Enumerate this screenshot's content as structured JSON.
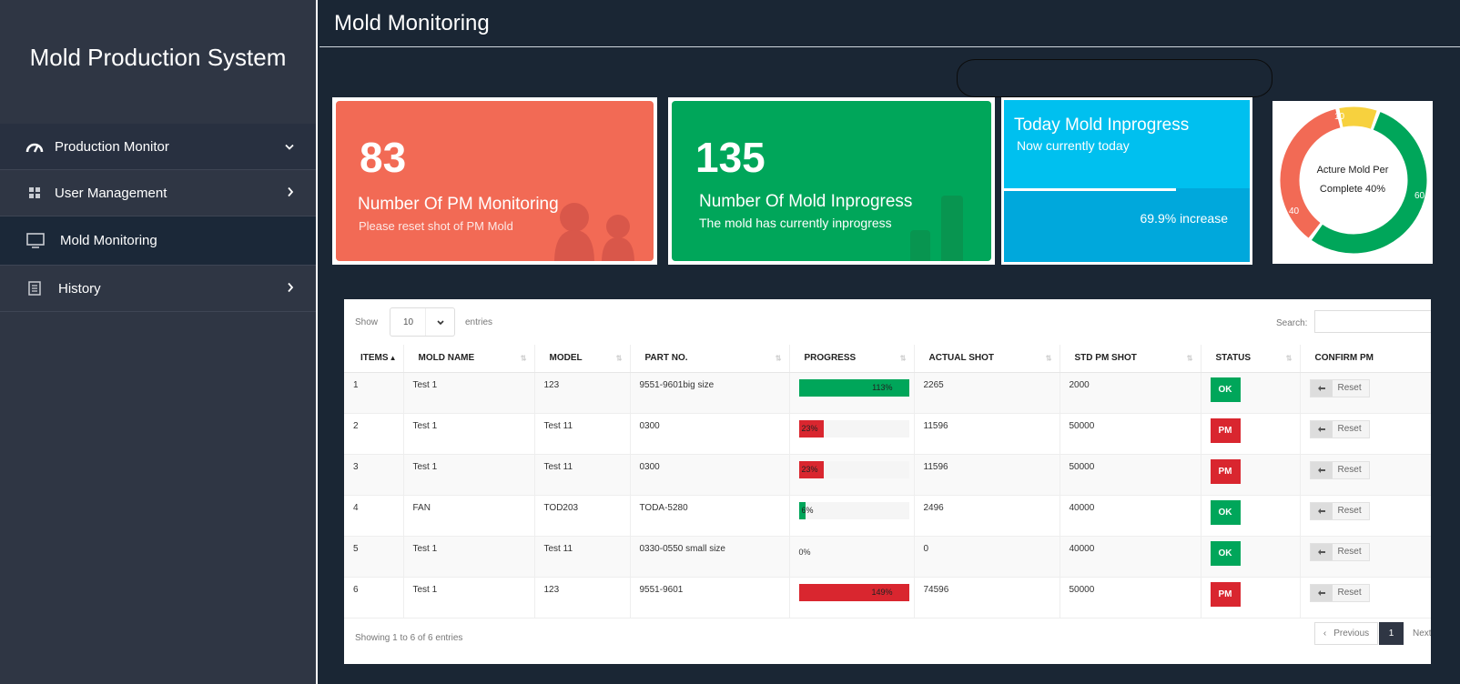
{
  "sidebar": {
    "brand": "Mold Production System",
    "items": [
      {
        "label": "Production Monitor",
        "icon": "dashboard-icon"
      },
      {
        "label": "User Management",
        "icon": "grid-icon"
      },
      {
        "label": "Mold Monitoring",
        "icon": "monitor-icon"
      },
      {
        "label": "History",
        "icon": "document-icon"
      }
    ]
  },
  "header": {
    "title": "Mold Monitoring"
  },
  "cards": {
    "pm": {
      "number": "83",
      "title": "Number Of PM Monitoring",
      "sub": "Please reset shot of PM Mold",
      "color": "#f26a55"
    },
    "inprogress": {
      "number": "135",
      "title": "Number Of Mold Inprogress",
      "sub": "The mold has currently inprogress",
      "color": "#00a65a"
    },
    "today": {
      "title": "Today Mold Inprogress",
      "sub": "Now currently today",
      "increase": "69.9% increase",
      "progress": 0.699,
      "color": "#00c0ef"
    }
  },
  "donut": {
    "label_line1": "Acture Mold Per",
    "label_line2": "Complete 40%",
    "segments": [
      {
        "label": "60",
        "value": 60,
        "color": "#00a65a"
      },
      {
        "label": "40",
        "value": 40,
        "color": "#f26a55"
      },
      {
        "label": "10",
        "value": 10,
        "color": "#f7d13e"
      }
    ]
  },
  "table": {
    "show_label": "Show",
    "length_value": "10",
    "entries_label": "entries",
    "search_label": "Search:",
    "columns": [
      "ITEMS",
      "MOLD NAME",
      "MODEL",
      "PART NO.",
      "PROGRESS",
      "ACTUAL SHOT",
      "STD PM SHOT",
      "STATUS",
      "CONFIRM PM"
    ],
    "reset_label": "Reset",
    "rows": [
      {
        "item": "1",
        "mold": "Test 1",
        "model": "123",
        "part": "9551-9601big size",
        "progress": "113%",
        "progress_value": 1.13,
        "bar_color": "#00a65a",
        "actual": "2265",
        "std": "2000",
        "status": "OK",
        "status_type": "ok"
      },
      {
        "item": "2",
        "mold": "Test 1",
        "model": "Test 11",
        "part": "0300",
        "progress": "23%",
        "progress_value": 0.23,
        "bar_color": "#d9262f",
        "actual": "11596",
        "std": "50000",
        "status": "PM",
        "status_type": "pm"
      },
      {
        "item": "3",
        "mold": "Test 1",
        "model": "Test 11",
        "part": "0300",
        "progress": "23%",
        "progress_value": 0.23,
        "bar_color": "#d9262f",
        "actual": "11596",
        "std": "50000",
        "status": "PM",
        "status_type": "pm"
      },
      {
        "item": "4",
        "mold": "FAN",
        "model": "TOD203",
        "part": "TODA-5280",
        "progress": "6%",
        "progress_value": 0.06,
        "bar_color": "#00a65a",
        "actual": "2496",
        "std": "40000",
        "status": "OK",
        "status_type": "ok"
      },
      {
        "item": "5",
        "mold": "Test 1",
        "model": "Test 11",
        "part": "0330-0550 small size",
        "progress": "0%",
        "progress_value": 0,
        "bar_color": "#00a65a",
        "actual": "0",
        "std": "40000",
        "status": "OK",
        "status_type": "ok"
      },
      {
        "item": "6",
        "mold": "Test 1",
        "model": "123",
        "part": "9551-9601",
        "progress": "149%",
        "progress_value": 1.49,
        "bar_color": "#d9262f",
        "actual": "74596",
        "std": "50000",
        "status": "PM",
        "status_type": "pm"
      }
    ],
    "info": "Showing 1 to 6 of 6 entries",
    "pager": {
      "previous": "Previous",
      "current": "1",
      "next": "Next"
    }
  }
}
